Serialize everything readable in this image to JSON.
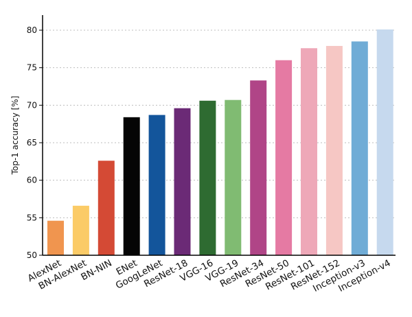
{
  "chart_data": {
    "type": "bar",
    "title": "",
    "xlabel": "",
    "ylabel": "Top-1 accuracy [%]",
    "ylim": [
      50,
      80
    ],
    "yticks": [
      50,
      55,
      60,
      65,
      70,
      75,
      80
    ],
    "grid": "horizontal dotted",
    "categories": [
      "AlexNet",
      "BN-AlexNet",
      "BN-NIN",
      "ENet",
      "GoogLeNet",
      "ResNet-18",
      "VGG-16",
      "VGG-19",
      "ResNet-34",
      "ResNet-50",
      "ResNet-101",
      "ResNet-152",
      "Inception-v3",
      "Inception-v4"
    ],
    "values": [
      54.6,
      56.6,
      62.6,
      68.4,
      68.7,
      69.6,
      70.6,
      70.7,
      73.3,
      76.0,
      77.6,
      77.9,
      78.5,
      80.1
    ],
    "colors": [
      "#f0954f",
      "#fbcb67",
      "#d44a35",
      "#050505",
      "#13559b",
      "#6b2a76",
      "#2e6b31",
      "#80bb72",
      "#b04587",
      "#e57aa3",
      "#eea8b8",
      "#f6c7c4",
      "#70acd6",
      "#c6d9ee"
    ]
  }
}
